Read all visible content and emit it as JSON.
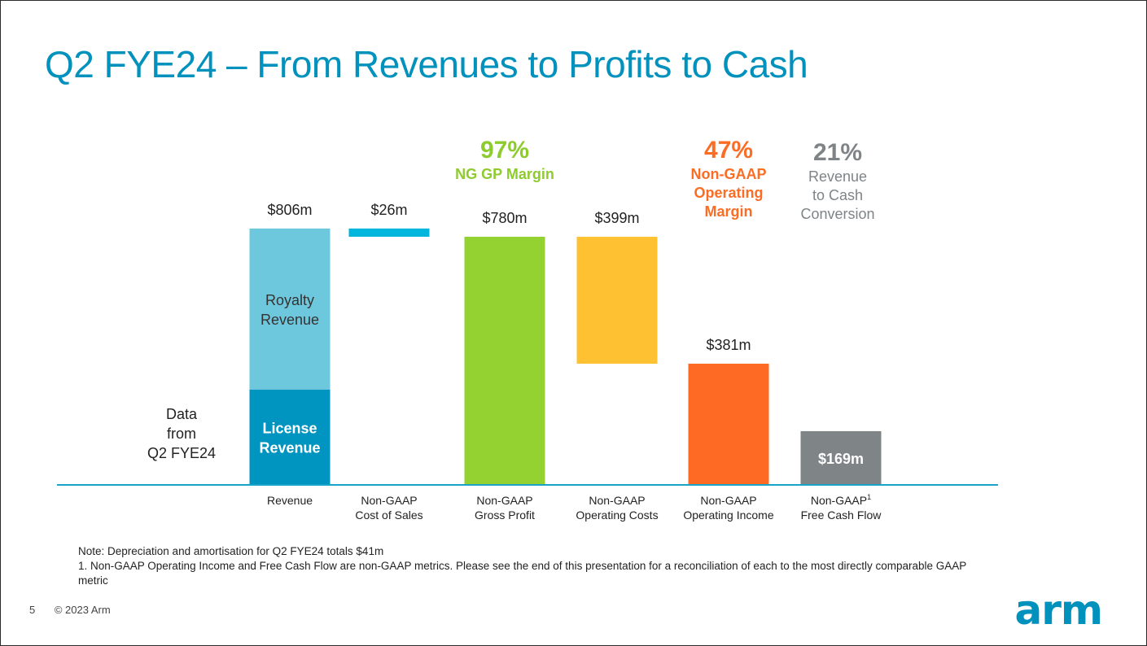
{
  "slide": {
    "title": "Q2 FYE24 – From Revenues to Profits to Cash",
    "page_number": "5",
    "copyright": "© 2023 Arm",
    "logo_text": "arm",
    "note_line1": "Note: Depreciation and amortisation for Q2 FYE24 totals $41m",
    "note_line2": "1. Non-GAAP Operating Income and Free Cash Flow are non-GAAP metrics.  Please see the end of this presentation for a reconciliation of each to the most directly comparable GAAP metric"
  },
  "chart_data": {
    "type": "bar",
    "subtype": "waterfall",
    "side_label": [
      "Data",
      "from",
      "Q2 FYE24"
    ],
    "unit": "$m",
    "bars": [
      {
        "category": [
          "Revenue"
        ],
        "value": 806,
        "base": 0,
        "value_label": "$806m",
        "segments": [
          {
            "name": [
              "License",
              "Revenue"
            ],
            "value": 300,
            "color": "#0095c0",
            "text_color": "#ffffff"
          },
          {
            "name": [
              "Royalty",
              "Revenue"
            ],
            "value": 506,
            "color": "#6ec8dd",
            "text_color": "#333333"
          }
        ]
      },
      {
        "category": [
          "Non-GAAP",
          "Cost of Sales"
        ],
        "value": 26,
        "base": 780,
        "value_label": "$26m",
        "color": "#00b6dd"
      },
      {
        "category": [
          "Non-GAAP",
          "Gross Profit"
        ],
        "value": 780,
        "base": 0,
        "value_label": "$780m",
        "color": "#93d230"
      },
      {
        "category": [
          "Non-GAAP",
          "Operating Costs"
        ],
        "value": 399,
        "base": 381,
        "value_label": "$399m",
        "color": "#fec132"
      },
      {
        "category": [
          "Non-GAAP",
          "Operating Income"
        ],
        "value": 381,
        "base": 0,
        "value_label": "$381m",
        "color": "#fe6a23"
      },
      {
        "category": [
          "Non-GAAP",
          "Free Cash Flow"
        ],
        "superscript": "1",
        "value": 169,
        "base": 0,
        "value_label": "$169m",
        "label_inside": true,
        "color": "#7f8487"
      }
    ],
    "annotations": [
      {
        "bar_index": 2,
        "percent": "97%",
        "lines": [
          "NG GP Margin"
        ],
        "color": "#8ecb2e"
      },
      {
        "bar_index": 4,
        "percent": "47%",
        "lines": [
          "Non-GAAP",
          "Operating",
          "Margin"
        ],
        "color": "#fb6c25"
      },
      {
        "bar_index": 5,
        "percent": "21%",
        "lines": [
          "Revenue",
          "to Cash",
          "Conversion"
        ],
        "color": "#7f8487"
      }
    ],
    "colors": {
      "axis": "#19a3c8"
    }
  }
}
